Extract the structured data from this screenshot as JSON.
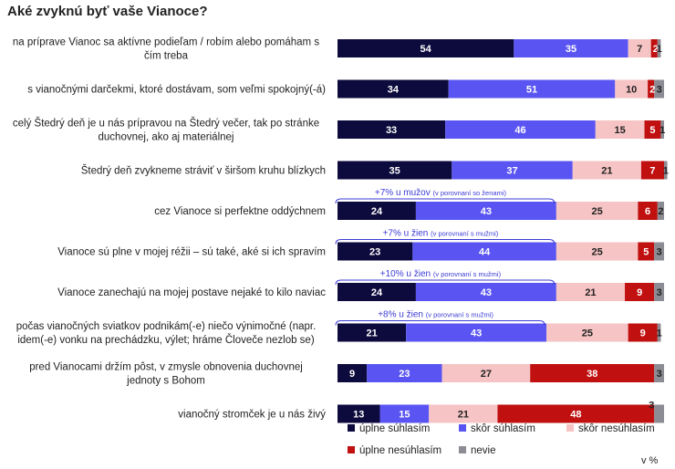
{
  "chart_data": {
    "type": "bar",
    "orientation": "horizontal",
    "stacked": true,
    "title": "Aké zvyknú byť vaše Vianoce?",
    "unit_label": "v %",
    "xlim": [
      0,
      100
    ],
    "categories": [
      [
        "na príprave Vianoc sa aktívne podieľam / robím alebo pomáham s",
        "čím treba"
      ],
      [
        "s vianočnými darčekmi, ktoré dostávam, som veľmi spokojný(-á)"
      ],
      [
        "celý Štedrý deň je u nás prípravou na Štedrý večer, tak po stránke",
        "duchovnej, ako aj materiálnej"
      ],
      [
        "Štedrý deň zvykneme stráviť v širšom kruhu blízkych"
      ],
      [
        "cez Vianoce si perfektne oddýchnem"
      ],
      [
        "Vianoce sú plne v mojej réžii – sú také, aké si ich spravím"
      ],
      [
        "Vianoce zanechajú na mojej postave  nejaké to kilo naviac"
      ],
      [
        "počas vianočných sviatkov podnikám(-e) niečo výnimočné  (napr.",
        "idem(-e) vonku na prechádzku, výlet; hráme Človeče nezlob se)"
      ],
      [
        "pred Vianocami držím pôst, v zmysle  obnovenia duchovnej",
        "jednoty s Bohom"
      ],
      [
        "vianočný stromček je u nás živý"
      ]
    ],
    "series": [
      {
        "name": "úplne súhlasím",
        "color": "#0d0a3d",
        "label_color": "#ffffff",
        "values": [
          54,
          34,
          33,
          35,
          24,
          23,
          24,
          21,
          9,
          13
        ]
      },
      {
        "name": "skôr súhlasím",
        "color": "#5a55f2",
        "label_color": "#ffffff",
        "values": [
          35,
          51,
          46,
          37,
          43,
          44,
          43,
          43,
          23,
          15
        ]
      },
      {
        "name": "skôr nesúhlasím",
        "color": "#f6c4c4",
        "label_color": "#222222",
        "values": [
          7,
          10,
          15,
          21,
          25,
          25,
          21,
          25,
          27,
          21
        ]
      },
      {
        "name": "úplne nesúhlasím",
        "color": "#c01010",
        "label_color": "#ffffff",
        "values": [
          2,
          2,
          5,
          7,
          6,
          5,
          9,
          9,
          38,
          48
        ]
      },
      {
        "name": "nevie",
        "color": "#8c8c94",
        "label_color": "#222222",
        "values": [
          1,
          3,
          1,
          1,
          2,
          3,
          3,
          1,
          3,
          3
        ]
      }
    ],
    "annotations": [
      {
        "row": 4,
        "main": "+7% u mužov",
        "note": "(v porovnaní so ženami)"
      },
      {
        "row": 5,
        "main": "+7% u žien",
        "note": "(v porovnaní s mužmi)"
      },
      {
        "row": 6,
        "main": "+10% u žien",
        "note": "(v porovnaní s mužmi)"
      },
      {
        "row": 7,
        "main": "+8% u žien",
        "note": "(v porovnaní s mužmi)"
      }
    ]
  }
}
